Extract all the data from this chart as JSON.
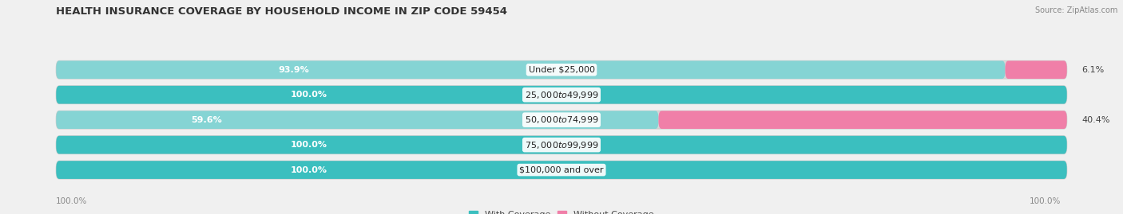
{
  "title": "HEALTH INSURANCE COVERAGE BY HOUSEHOLD INCOME IN ZIP CODE 59454",
  "source": "Source: ZipAtlas.com",
  "categories": [
    "Under $25,000",
    "$25,000 to $49,999",
    "$50,000 to $74,999",
    "$75,000 to $99,999",
    "$100,000 and over"
  ],
  "with_coverage": [
    93.9,
    100.0,
    59.6,
    100.0,
    100.0
  ],
  "without_coverage": [
    6.1,
    0.0,
    40.4,
    0.0,
    0.0
  ],
  "color_with": "#3bbfbf",
  "color_without": "#f07fa8",
  "color_with_light": "#85d4d4",
  "bar_bg": "#d8d8d8",
  "bar_bg_border": "#cccccc",
  "bg_color": "#f0f0f0",
  "label_fontsize": 8.0,
  "title_fontsize": 9.5,
  "legend_fontsize": 8.0,
  "axis_label_fontsize": 7.5,
  "bar_height": 0.72,
  "xlim": [
    0,
    100
  ]
}
